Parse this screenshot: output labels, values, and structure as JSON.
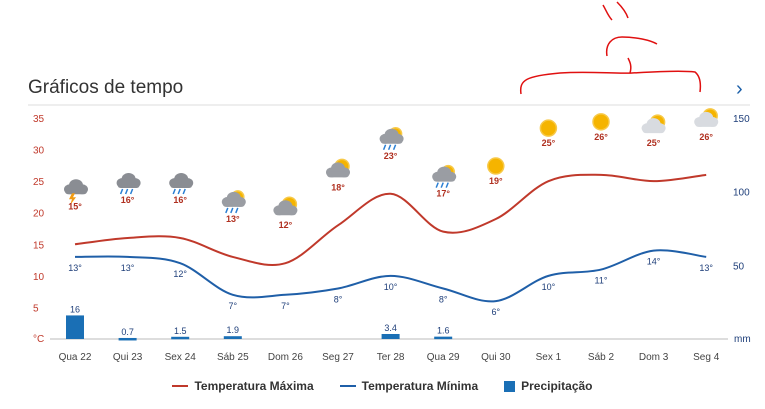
{
  "header": {
    "title": "Gráficos de tempo",
    "next_icon": "chevron-right-icon"
  },
  "chart_data": {
    "type": "line",
    "categories": [
      "Qua 22",
      "Qui 23",
      "Sex 24",
      "Sáb 25",
      "Dom 26",
      "Seg 27",
      "Ter 28",
      "Qua 29",
      "Qui 30",
      "Sex 1",
      "Sáb 2",
      "Dom 3",
      "Seg 4"
    ],
    "series": [
      {
        "name": "Temperatura Máxima",
        "color": "#c0392b",
        "values": [
          15,
          16,
          16,
          13,
          12,
          18,
          23,
          17,
          19,
          25,
          26,
          25,
          26
        ],
        "labels": [
          "15°",
          "16°",
          "16°",
          "13°",
          "12°",
          "18°",
          "23°",
          "17°",
          "19°",
          "25°",
          "26°",
          "25°",
          "26°"
        ]
      },
      {
        "name": "Temperatura Mínima",
        "color": "#1f5fa8",
        "values": [
          13,
          13,
          12,
          7,
          7,
          8,
          10,
          8,
          6,
          10,
          11,
          14,
          13
        ],
        "labels": [
          "13°",
          "13°",
          "12°",
          "7°",
          "7°",
          "8°",
          "10°",
          "8°",
          "6°",
          "10°",
          "11°",
          "14°",
          "13°"
        ]
      },
      {
        "name": "Precipitação",
        "type": "bar",
        "color": "#1a6fb5",
        "values": [
          16,
          0.7,
          1.5,
          1.9,
          null,
          null,
          3.4,
          1.6,
          null,
          null,
          null,
          null,
          null
        ],
        "labels": [
          "16",
          "0.7",
          "1.5",
          "1.9",
          "",
          "",
          "3.4",
          "1.6",
          "",
          "",
          "",
          "",
          ""
        ]
      }
    ],
    "weather_icons": [
      "storm-cloud-icon",
      "rain-cloud-icon",
      "rain-cloud-icon",
      "sun-rain-cloud-icon",
      "sun-cloud-icon",
      "sun-cloud-icon",
      "sun-rain-cloud-icon",
      "sun-rain-cloud-icon",
      "sun-icon",
      "sun-icon",
      "sun-icon",
      "sun-cloud-icon",
      "sun-cloud-icon"
    ],
    "y_left": {
      "ticks": [
        "35",
        "30",
        "25",
        "20",
        "15",
        "10",
        "5",
        "°C"
      ],
      "ylim": [
        0,
        35
      ],
      "unit": "°C",
      "color": "#c0392b"
    },
    "y_right": {
      "ticks": [
        "150",
        "100",
        "50",
        "mm"
      ],
      "ylim": [
        0,
        150
      ],
      "unit": "mm",
      "color": "#1f3f7a"
    },
    "legend": {
      "placement": "bottom-center"
    },
    "grid": false
  }
}
